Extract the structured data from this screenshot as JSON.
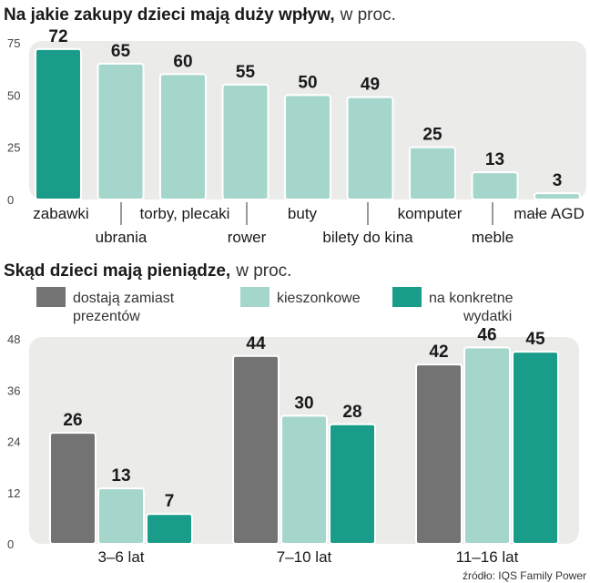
{
  "colors": {
    "panel": "#ebebea",
    "dark_green": "#1a9c8a",
    "light_green": "#a5d6cb",
    "gray": "#737373",
    "bar_border": "#ffffff"
  },
  "chart_data": [
    {
      "type": "bar",
      "title": "Na jakie zakupy dzieci mają duży wpływ,",
      "subtitle": "w proc.",
      "categories": [
        "zabawki",
        "ubrania",
        "torby, plecaki",
        "rower",
        "buty",
        "bilety do kina",
        "komputer",
        "meble",
        "małe AGD"
      ],
      "values": [
        72,
        65,
        60,
        55,
        50,
        49,
        25,
        13,
        3
      ],
      "highlight_index": 0,
      "yticks": [
        0,
        25,
        50,
        75
      ],
      "ylim": [
        0,
        75
      ],
      "grid": false
    },
    {
      "type": "bar",
      "title": "Skąd dzieci mają pieniądze,",
      "subtitle": "w proc.",
      "categories": [
        "3–6 lat",
        "7–10 lat",
        "11–16 lat"
      ],
      "series": [
        {
          "name": "dostają zamiast prezentów",
          "values": [
            26,
            44,
            42
          ],
          "color": "#737373"
        },
        {
          "name": "kieszonkowe",
          "values": [
            13,
            30,
            46
          ],
          "color": "#a5d6cb"
        },
        {
          "name": "na konkretne wydatki",
          "values": [
            7,
            28,
            45
          ],
          "color": "#1a9c8a"
        }
      ],
      "legend_lines": [
        [
          "dostają zamiast",
          "prezentów"
        ],
        [
          "kieszonkowe"
        ],
        [
          "na konkretne",
          "wydatki"
        ]
      ],
      "yticks": [
        0,
        12,
        24,
        36,
        48
      ],
      "ylim": [
        0,
        48
      ],
      "legend_position": "top",
      "grid": false
    }
  ],
  "source": "źródło: IQS Family Power"
}
